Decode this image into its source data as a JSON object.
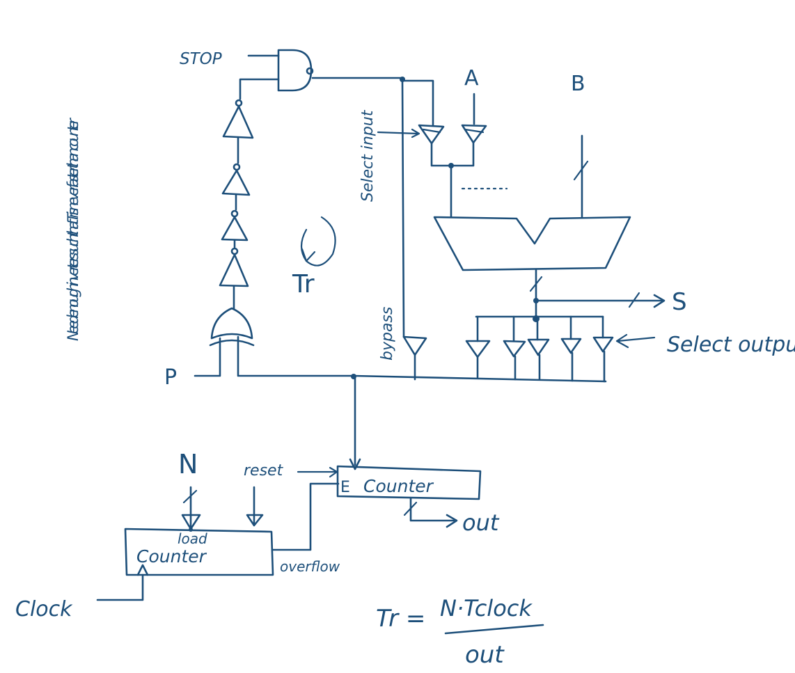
{
  "diagram": {
    "ink_color": "#1d4f7a",
    "background": "#ffffff",
    "labels": {
      "stop": "STOP",
      "p": "P",
      "a": "A",
      "b": "B",
      "s": "S",
      "tr": "Tr",
      "select_input": "Select input",
      "bypass": "bypass",
      "select_output": "Select output",
      "note": "Need enough inverters such that Tr is never faster than counter",
      "n": "N",
      "reset": "reset",
      "e": "E",
      "counter": "Counter",
      "out": "out",
      "load": "load",
      "load_counter": "Counter",
      "overflow": "overflow",
      "clock": "Clock",
      "formula_lhs": "Tr =",
      "formula_num": "N·Tclock",
      "formula_den": "out"
    }
  }
}
